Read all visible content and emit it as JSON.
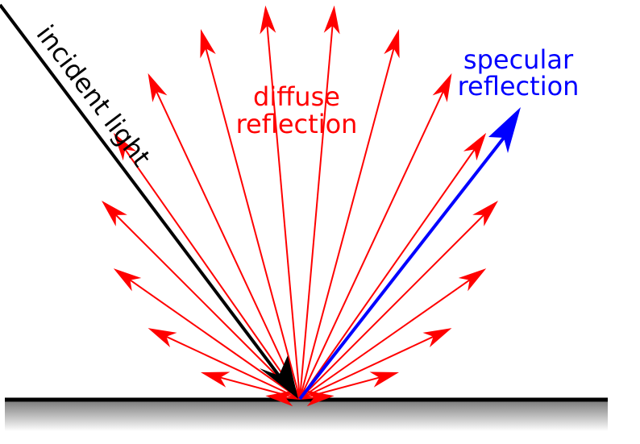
{
  "labels": {
    "incident": "incident light",
    "diffuse_line1": "diffuse",
    "diffuse_line2": "reflection",
    "specular_line1": "specular",
    "specular_line2": "reflection"
  },
  "colors": {
    "incident": "#000000",
    "diffuse": "#ff0000",
    "specular": "#0000ff",
    "surface_line": "#000000",
    "surface_shade_top": "#7a7a7a",
    "surface_shade_bottom": "#ffffff"
  },
  "diffuse_ray_count": 18
}
